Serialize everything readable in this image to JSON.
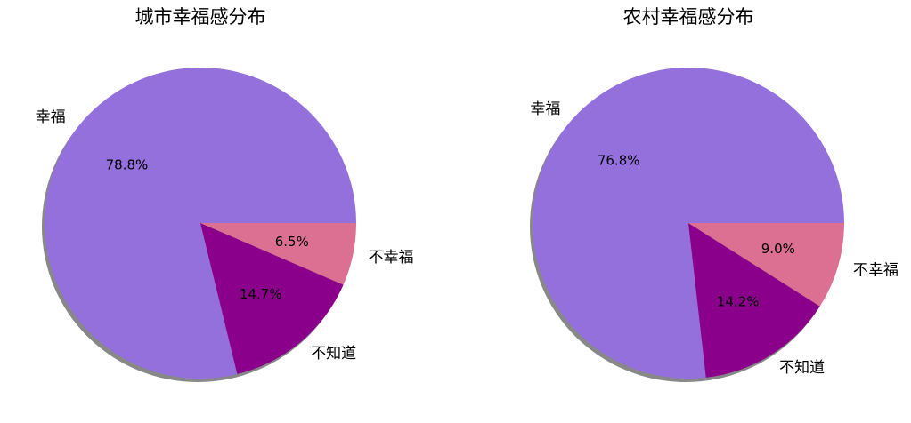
{
  "chart_data": [
    {
      "type": "pie",
      "title": "城市幸福感分布",
      "categories": [
        "幸福",
        "不知道",
        "不幸福"
      ],
      "values": [
        78.8,
        14.7,
        6.5
      ],
      "value_labels": [
        "78.8%",
        "14.7%",
        "6.5%"
      ],
      "colors": [
        "#9370db",
        "#8b008b",
        "#db7093"
      ],
      "shadow": true
    },
    {
      "type": "pie",
      "title": "农村幸福感分布",
      "categories": [
        "幸福",
        "不知道",
        "不幸福"
      ],
      "values": [
        76.8,
        14.2,
        9.0
      ],
      "value_labels": [
        "76.8%",
        "14.2%",
        "9.0%"
      ],
      "colors": [
        "#9370db",
        "#8b008b",
        "#db7093"
      ],
      "shadow": true
    }
  ]
}
